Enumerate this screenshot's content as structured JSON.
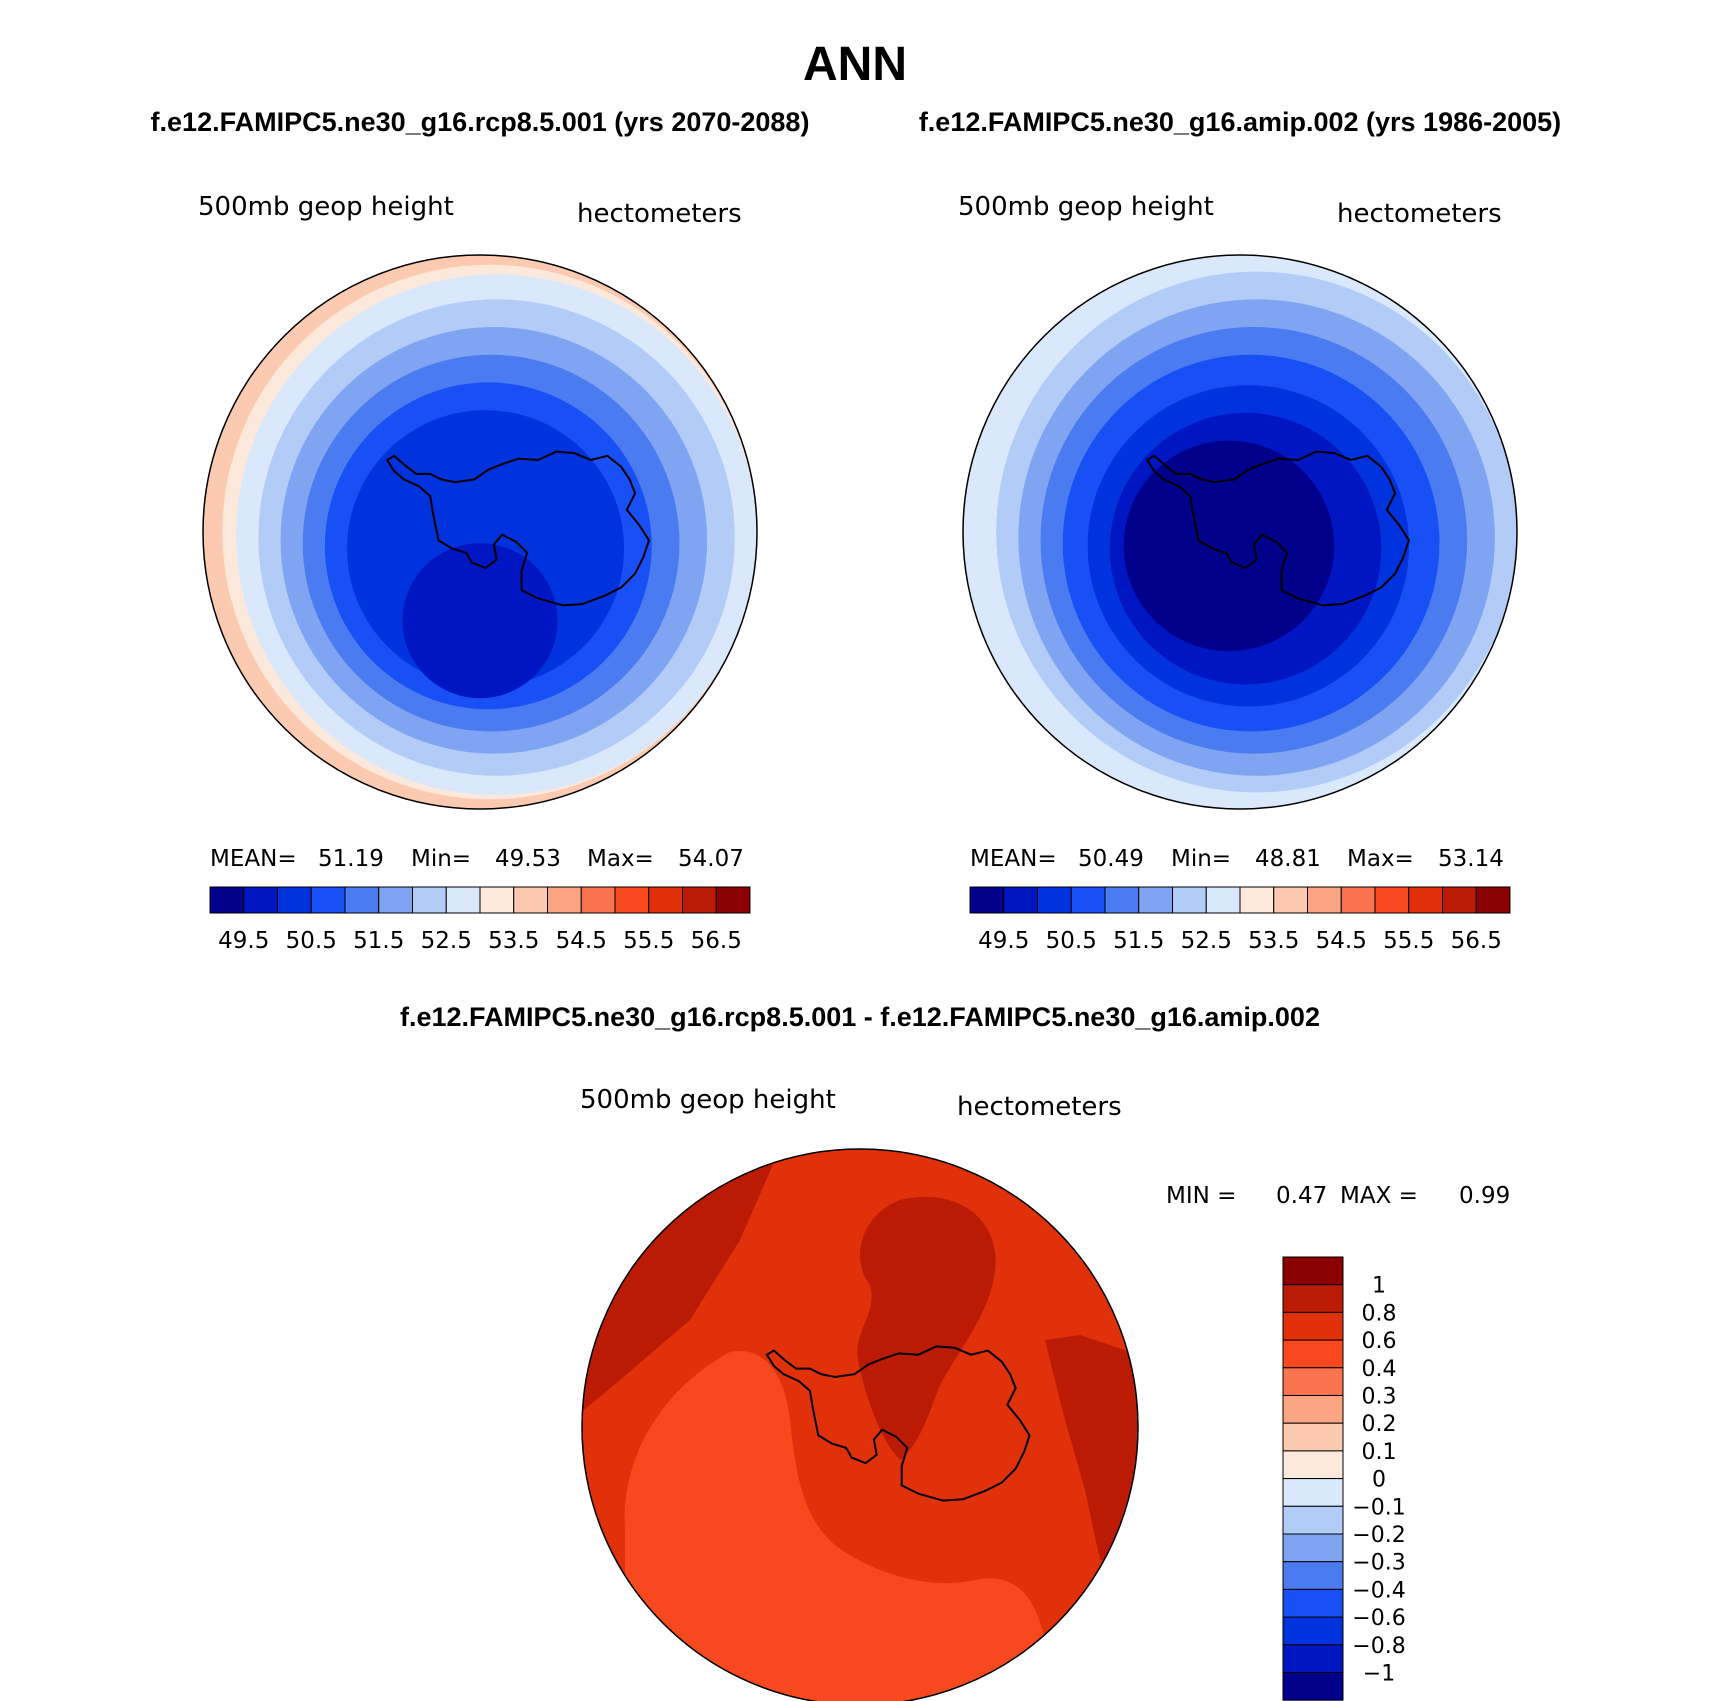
{
  "main_title": "ANN",
  "panels": [
    {
      "id": "panel-rcp85",
      "subtitle": "f.e12.FAMIPC5.ne30_g16.rcp8.5.001 (yrs 2070-2088)",
      "variable": "500mb geop height",
      "units": "hectometers",
      "stats": {
        "mean_label": "MEAN=",
        "mean": "51.19",
        "min_label": "Min=",
        "min": "49.53",
        "max_label": "Max=",
        "max": "54.07"
      },
      "bands": [
        "#00008b",
        "#0016c2",
        "#0032dd",
        "#1850f5",
        "#4b7bf0",
        "#7ea4f2",
        "#b2cbf7",
        "#d9e9fb",
        "#fde9dc",
        "#fcc9b1",
        "#fca582",
        "#fb7450",
        "#f8481e",
        "#e0310b",
        "#bb1b05",
        "#8b0000"
      ],
      "rings": [
        {
          "color": "#fcc9b1",
          "r": 1.0,
          "dx": 0.0,
          "dy": 0.0
        },
        {
          "color": "#fde9dc",
          "r": 0.965,
          "dx": 0.035,
          "dy": 0.0
        },
        {
          "color": "#d9e9fb",
          "r": 0.94,
          "dx": 0.06,
          "dy": 0.01
        },
        {
          "color": "#b2cbf7",
          "r": 0.86,
          "dx": 0.06,
          "dy": 0.02
        },
        {
          "color": "#7ea4f2",
          "r": 0.77,
          "dx": 0.05,
          "dy": 0.03
        },
        {
          "color": "#4b7bf0",
          "r": 0.68,
          "dx": 0.04,
          "dy": 0.04
        },
        {
          "color": "#1850f5",
          "r": 0.59,
          "dx": 0.03,
          "dy": 0.05
        },
        {
          "color": "#0032dd",
          "r": 0.5,
          "dx": 0.02,
          "dy": 0.06
        },
        {
          "color": "#0016c2",
          "r": 0.28,
          "dx": 0.0,
          "dy": 0.32
        }
      ]
    },
    {
      "id": "panel-amip",
      "subtitle": "f.e12.FAMIPC5.ne30_g16.amip.002 (yrs 1986-2005)",
      "variable": "500mb geop height",
      "units": "hectometers",
      "stats": {
        "mean_label": "MEAN=",
        "mean": "50.49",
        "min_label": "Min=",
        "min": "48.81",
        "max_label": "Max=",
        "max": "53.14"
      },
      "bands": [
        "#00008b",
        "#0016c2",
        "#0032dd",
        "#1850f5",
        "#4b7bf0",
        "#7ea4f2",
        "#b2cbf7",
        "#d9e9fb",
        "#fde9dc",
        "#fcc9b1",
        "#fca582",
        "#fb7450",
        "#f8481e",
        "#e0310b",
        "#bb1b05",
        "#8b0000"
      ],
      "rings": [
        {
          "color": "#d9e9fb",
          "r": 1.0,
          "dx": 0.0,
          "dy": 0.0
        },
        {
          "color": "#b2cbf7",
          "r": 0.94,
          "dx": 0.06,
          "dy": 0.0
        },
        {
          "color": "#7ea4f2",
          "r": 0.86,
          "dx": 0.06,
          "dy": 0.02
        },
        {
          "color": "#4b7bf0",
          "r": 0.77,
          "dx": 0.05,
          "dy": 0.03
        },
        {
          "color": "#1850f5",
          "r": 0.68,
          "dx": 0.04,
          "dy": 0.04
        },
        {
          "color": "#0032dd",
          "r": 0.58,
          "dx": 0.03,
          "dy": 0.05
        },
        {
          "color": "#0016c2",
          "r": 0.49,
          "dx": 0.02,
          "dy": 0.06
        },
        {
          "color": "#00008b",
          "r": 0.38,
          "dx": -0.04,
          "dy": 0.05
        }
      ]
    }
  ],
  "top_colorbar_ticks": [
    "49.5",
    "50.5",
    "51.5",
    "52.5",
    "53.5",
    "54.5",
    "55.5",
    "56.5"
  ],
  "diff_panel": {
    "id": "panel-diff",
    "subtitle": "f.e12.FAMIPC5.ne30_g16.rcp8.5.001 - f.e12.FAMIPC5.ne30_g16.amip.002",
    "variable": "500mb geop height",
    "units": "hectometers",
    "min_label": "MIN =",
    "min": "0.47",
    "max_label": "MAX =",
    "max": "0.99",
    "background_color": "#e0310b",
    "regions": {
      "dark_top_left": "#bb1b05",
      "dark_center": "#bb1b05",
      "dark_right": "#bb1b05",
      "light_lower_left": "#f8481e"
    },
    "colorbar_colors_top_to_bottom": [
      "#8b0000",
      "#bb1b05",
      "#e0310b",
      "#f8481e",
      "#fb7450",
      "#fca582",
      "#fcc9b1",
      "#fde9dc",
      "#d9e9fb",
      "#b2cbf7",
      "#7ea4f2",
      "#4b7bf0",
      "#1850f5",
      "#0032dd",
      "#0016c2",
      "#00008b"
    ],
    "colorbar_ticks": [
      "1",
      "0.8",
      "0.6",
      "0.4",
      "0.3",
      "0.2",
      "0.1",
      "0",
      "−0.1",
      "−0.2",
      "−0.3",
      "−0.4",
      "−0.6",
      "−0.8",
      "−1"
    ]
  }
}
